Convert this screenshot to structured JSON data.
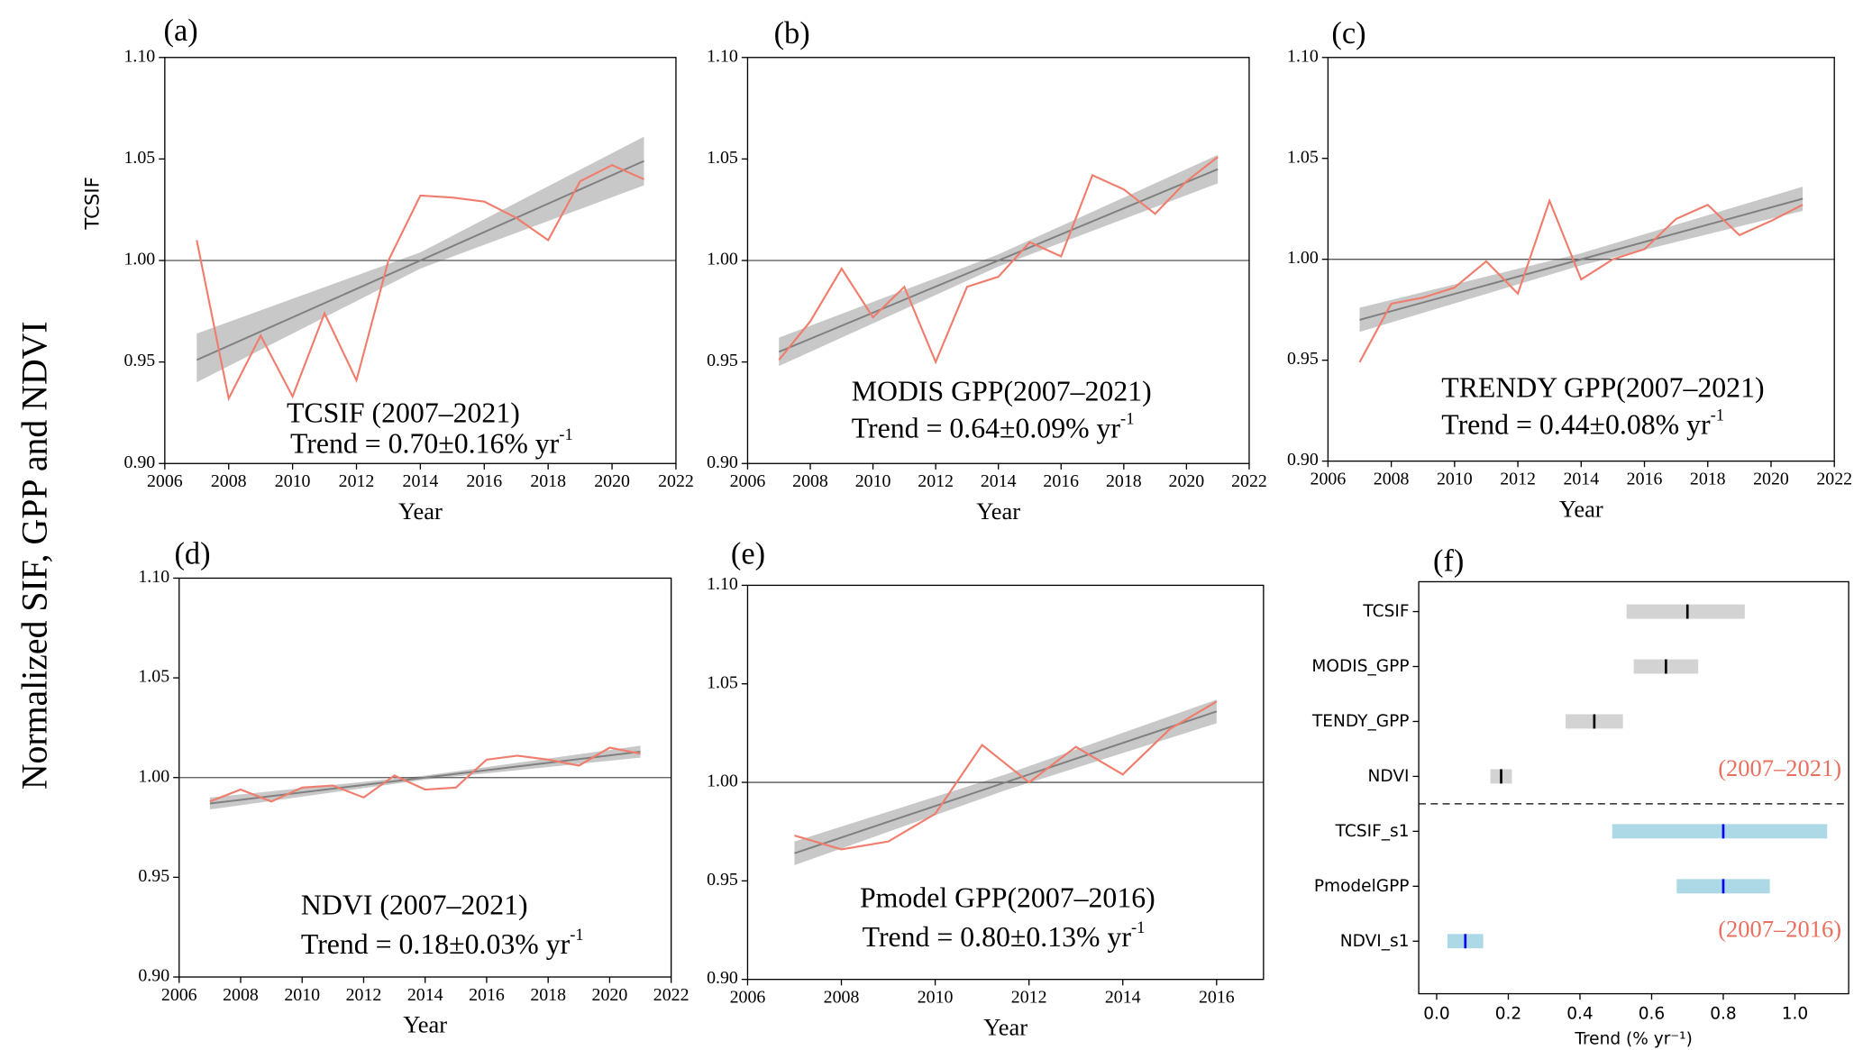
{
  "ylabel": "Normalized SIF, GPP and NDVI",
  "chart_data": [
    {
      "type": "line",
      "panel": "(a)",
      "ylabel": "TCSIF",
      "xlabel": "Year",
      "x": [
        2007,
        2008,
        2009,
        2010,
        2011,
        2012,
        2013,
        2014,
        2015,
        2016,
        2017,
        2018,
        2019,
        2020,
        2021
      ],
      "series": [
        {
          "color": "#f07c6c",
          "values": [
            1.01,
            0.932,
            0.963,
            0.933,
            0.974,
            0.941,
            1.0,
            1.032,
            1.031,
            1.029,
            1.021,
            1.01,
            1.039,
            1.047,
            1.04
          ]
        }
      ],
      "trend": {
        "color": "#808080",
        "x": [
          2007,
          2021
        ],
        "values": [
          0.951,
          1.049
        ],
        "band_color": "#c8c8c8",
        "band_x": [
          2007,
          2014,
          2021
        ],
        "band_lower": [
          0.94,
          0.996,
          1.037
        ],
        "band_upper": [
          0.964,
          1.004,
          1.061
        ]
      },
      "reference_line": 1,
      "annotation": [
        "TCSIF (2007–2021)",
        "Trend = 0.70±0.16% yr",
        "-1"
      ],
      "xlim": [
        2006,
        2022
      ],
      "xticks": [
        2006,
        2008,
        2010,
        2012,
        2014,
        2016,
        2018,
        2020,
        2022
      ],
      "ylim": [
        0.9,
        1.1
      ],
      "yticks": [
        {
          "value": 0.9,
          "label": "0.90"
        },
        0.95,
        {
          "value": 1.0,
          "label": "1.00"
        },
        1.05,
        {
          "value": 1.1,
          "label": "1.10"
        }
      ]
    },
    {
      "type": "line",
      "panel": "(b)",
      "xlabel": "Year",
      "x": [
        2007,
        2008,
        2009,
        2010,
        2011,
        2012,
        2013,
        2014,
        2015,
        2016,
        2017,
        2018,
        2019,
        2020,
        2021
      ],
      "series": [
        {
          "color": "#f07c6c",
          "values": [
            0.951,
            0.97,
            0.996,
            0.972,
            0.987,
            0.95,
            0.987,
            0.992,
            1.009,
            1.002,
            1.042,
            1.035,
            1.023,
            1.039,
            1.051
          ]
        }
      ],
      "trend": {
        "color": "#808080",
        "x": [
          2007,
          2021
        ],
        "values": [
          0.955,
          1.045
        ],
        "band_color": "#c8c8c8",
        "band_x": [
          2007,
          2014,
          2021
        ],
        "band_lower": [
          0.948,
          0.997,
          1.038
        ],
        "band_upper": [
          0.962,
          1.003,
          1.052
        ]
      },
      "reference_line": 1,
      "annotation": [
        "MODIS GPP(2007–2021)",
        "Trend = 0.64±0.09% yr",
        "-1"
      ],
      "xlim": [
        2006,
        2022
      ],
      "xticks": [
        2006,
        2008,
        2010,
        2012,
        2014,
        2016,
        2018,
        2020,
        2022
      ],
      "ylim": [
        0.9,
        1.1
      ],
      "yticks": [
        {
          "value": 0.9,
          "label": "0.90"
        },
        0.95,
        {
          "value": 1.0,
          "label": "1.00"
        },
        1.05,
        {
          "value": 1.1,
          "label": "1.10"
        }
      ]
    },
    {
      "type": "line",
      "panel": "(c)",
      "xlabel": "Year",
      "x": [
        2007,
        2008,
        2009,
        2010,
        2011,
        2012,
        2013,
        2014,
        2015,
        2016,
        2017,
        2018,
        2019,
        2020,
        2021
      ],
      "series": [
        {
          "color": "#f07c6c",
          "values": [
            0.949,
            0.978,
            0.981,
            0.986,
            0.999,
            0.983,
            1.029,
            0.99,
            1.0,
            1.005,
            1.02,
            1.027,
            1.012,
            1.019,
            1.027
          ]
        }
      ],
      "trend": {
        "color": "#808080",
        "x": [
          2007,
          2021
        ],
        "values": [
          0.97,
          1.03
        ],
        "band_color": "#c8c8c8",
        "band_x": [
          2007,
          2014,
          2021
        ],
        "band_lower": [
          0.964,
          0.997,
          1.024
        ],
        "band_upper": [
          0.976,
          1.003,
          1.036
        ]
      },
      "reference_line": 1,
      "annotation": [
        "TRENDY GPP(2007–2021)",
        "Trend = 0.44±0.08% yr",
        "-1"
      ],
      "xlim": [
        2006,
        2022
      ],
      "xticks": [
        2006,
        2008,
        2010,
        2012,
        2014,
        2016,
        2018,
        2020,
        2022
      ],
      "ylim": [
        0.9,
        1.1
      ],
      "yticks": [
        {
          "value": 0.9,
          "label": "0.90"
        },
        0.95,
        {
          "value": 1.0,
          "label": "1.00"
        },
        1.05,
        {
          "value": 1.1,
          "label": "1.10"
        }
      ]
    },
    {
      "type": "line",
      "panel": "(d)",
      "xlabel": "Year",
      "x": [
        2007,
        2008,
        2009,
        2010,
        2011,
        2012,
        2013,
        2014,
        2015,
        2016,
        2017,
        2018,
        2019,
        2020,
        2021
      ],
      "series": [
        {
          "color": "#f07c6c",
          "values": [
            0.988,
            0.994,
            0.988,
            0.995,
            0.996,
            0.99,
            1.001,
            0.994,
            0.995,
            1.009,
            1.011,
            1.009,
            1.006,
            1.015,
            1.012
          ]
        }
      ],
      "trend": {
        "color": "#808080",
        "x": [
          2007,
          2021
        ],
        "values": [
          0.987,
          1.013
        ],
        "band_color": "#c8c8c8",
        "band_x": [
          2007,
          2014,
          2021
        ],
        "band_lower": [
          0.984,
          0.999,
          1.01
        ],
        "band_upper": [
          0.99,
          1.001,
          1.016
        ]
      },
      "reference_line": 1,
      "annotation": [
        "NDVI (2007–2021)",
        "Trend = 0.18±0.03% yr",
        "-1"
      ],
      "xlim": [
        2006,
        2022
      ],
      "xticks": [
        2006,
        2008,
        2010,
        2012,
        2014,
        2016,
        2018,
        2020,
        2022
      ],
      "ylim": [
        0.9,
        1.1
      ],
      "yticks": [
        {
          "value": 0.9,
          "label": "0.90"
        },
        0.95,
        {
          "value": 1.0,
          "label": "1.00"
        },
        1.05,
        {
          "value": 1.1,
          "label": "1.10"
        }
      ]
    },
    {
      "type": "line",
      "panel": "(e)",
      "xlabel": "Year",
      "x": [
        2007,
        2008,
        2009,
        2010,
        2011,
        2012,
        2013,
        2014,
        2015,
        2016
      ],
      "series": [
        {
          "color": "#f07c6c",
          "values": [
            0.973,
            0.966,
            0.97,
            0.984,
            1.019,
            1.0,
            1.018,
            1.004,
            1.027,
            1.041
          ]
        }
      ],
      "trend": {
        "color": "#808080",
        "x": [
          2007,
          2016
        ],
        "values": [
          0.964,
          1.036
        ],
        "band_color": "#c8c8c8",
        "band_x": [
          2007,
          2011.5,
          2016
        ],
        "band_lower": [
          0.958,
          0.996,
          1.03
        ],
        "band_upper": [
          0.97,
          1.004,
          1.042
        ]
      },
      "reference_line": 1,
      "annotation": [
        "Pmodel GPP(2007–2016)",
        "Trend = 0.80±0.13% yr",
        "-1"
      ],
      "xlim": [
        2006,
        2017
      ],
      "xticks": [
        2006,
        2008,
        2010,
        2012,
        2014,
        2016
      ],
      "ylim": [
        0.9,
        1.1
      ],
      "yticks": [
        {
          "value": 0.9,
          "label": "0.90"
        },
        0.95,
        {
          "value": 1.0,
          "label": "1.00"
        },
        1.05,
        {
          "value": 1.1,
          "label": "1.10"
        }
      ]
    },
    {
      "type": "range",
      "panel": "(f)",
      "xlabel": "Trend (% yr⁻¹)",
      "categories": [
        "TCSIF",
        "MODIS_GPP",
        "TENDY_GPP",
        "NDVI",
        "TCSIF_s1",
        "PmodelGPP",
        "NDVI_s1"
      ],
      "values": [
        0.7,
        0.64,
        0.44,
        0.18,
        0.8,
        0.8,
        0.08
      ],
      "lower": [
        0.53,
        0.55,
        0.36,
        0.15,
        0.49,
        0.67,
        0.03
      ],
      "upper": [
        0.86,
        0.73,
        0.52,
        0.21,
        1.09,
        0.93,
        0.13
      ],
      "colors": [
        "#d3d3d3",
        "#d3d3d3",
        "#d3d3d3",
        "#d3d3d3",
        "#add8e6",
        "#add8e6",
        "#add8e6"
      ],
      "marker_colors": [
        "#000000",
        "#000000",
        "#000000",
        "#000000",
        "#0000ff",
        "#0000ff",
        "#0000ff"
      ],
      "annotations": [
        "(2007–2021)",
        "(2007–2016)"
      ],
      "annotation_color": "#e8705f",
      "xlim": [
        -0.05,
        1.15
      ],
      "xticks": [
        {
          "value": 0,
          "label": "0.0"
        },
        0.2,
        0.4,
        0.6,
        0.8,
        {
          "value": 1,
          "label": "1.0"
        }
      ]
    }
  ]
}
